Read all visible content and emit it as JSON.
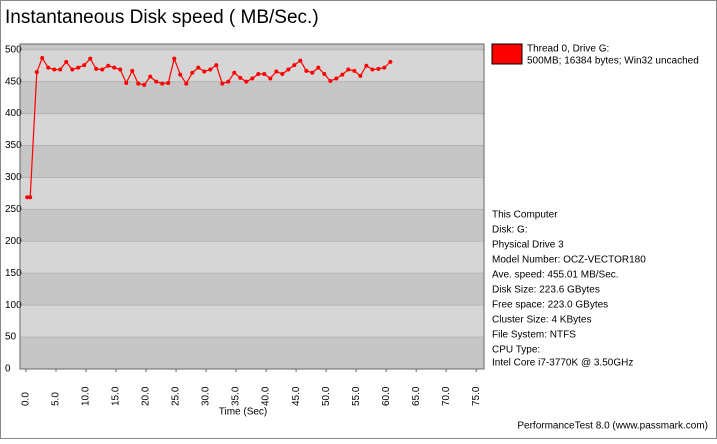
{
  "chart_data": {
    "type": "line",
    "title": "Instantaneous Disk speed ( MB/Sec.)",
    "x_label": "Time (Sec)",
    "xlim": [
      -1,
      76.3
    ],
    "ylim": [
      0,
      509
    ],
    "xticks": [
      {
        "value": 0,
        "label": "0.0"
      },
      {
        "value": 5,
        "label": "5.0"
      },
      {
        "value": 10,
        "label": "10.0"
      },
      {
        "value": 15,
        "label": "15.0"
      },
      {
        "value": 20,
        "label": "20.0"
      },
      {
        "value": 25,
        "label": "25.0"
      },
      {
        "value": 30,
        "label": "30.0"
      },
      {
        "value": 35,
        "label": "35.0"
      },
      {
        "value": 40,
        "label": "40.0"
      },
      {
        "value": 45,
        "label": "45.0"
      },
      {
        "value": 50,
        "label": "50.0"
      },
      {
        "value": 55,
        "label": "55.0"
      },
      {
        "value": 60,
        "label": "60.0"
      },
      {
        "value": 65,
        "label": "65.0"
      },
      {
        "value": 70,
        "label": "70.0"
      },
      {
        "value": 75,
        "label": "75.0"
      }
    ],
    "yticks": [
      0,
      50,
      100,
      150,
      200,
      250,
      300,
      350,
      400,
      450,
      500
    ],
    "x": [
      0.2,
      0.7,
      1.8,
      2.7,
      3.7,
      4.7,
      5.7,
      6.7,
      7.7,
      8.7,
      9.7,
      10.7,
      11.7,
      12.7,
      13.7,
      14.7,
      15.7,
      16.7,
      17.7,
      18.7,
      19.7,
      20.7,
      21.7,
      22.7,
      23.7,
      24.7,
      25.7,
      26.7,
      27.7,
      28.7,
      29.7,
      30.7,
      31.7,
      32.7,
      33.7,
      34.7,
      35.7,
      36.7,
      37.7,
      38.7,
      39.7,
      40.7,
      41.7,
      42.7,
      43.7,
      44.7,
      45.7,
      46.7,
      47.7,
      48.7,
      49.7,
      50.7,
      51.7,
      52.7,
      53.7,
      54.7,
      55.7,
      56.7,
      57.7,
      58.7,
      59.7,
      60.7
    ],
    "series": [
      {
        "name": "Thread 0, Drive G:",
        "detail": "500MB; 16384 bytes; Win32 uncached",
        "color": "#ff0000",
        "values": [
          269,
          269,
          465,
          487,
          472,
          469,
          469,
          481,
          469,
          472,
          476,
          486,
          470,
          469,
          475,
          472,
          469,
          448,
          467,
          447,
          445,
          458,
          450,
          447,
          448,
          486,
          461,
          447,
          464,
          472,
          466,
          469,
          476,
          447,
          450,
          464,
          456,
          450,
          455,
          462,
          462,
          455,
          466,
          462,
          469,
          476,
          483,
          467,
          464,
          472,
          462,
          451,
          455,
          461,
          469,
          467,
          459,
          475,
          469,
          470,
          472,
          481
        ]
      }
    ],
    "info": [
      "This Computer",
      "Disk: G:",
      "Physical Drive 3",
      "Model Number: OCZ-VECTOR180",
      "Ave. speed: 455.01 MB/Sec.",
      "Disk Size: 223.6 GBytes",
      "Free space: 223.0 GBytes",
      "Cluster Size: 4 KBytes",
      "File System: NTFS",
      "CPU Type:",
      "Intel Core i7-3770K @ 3.50GHz"
    ],
    "footer": "PerformanceTest 8.0 (www.passmark.com)"
  }
}
